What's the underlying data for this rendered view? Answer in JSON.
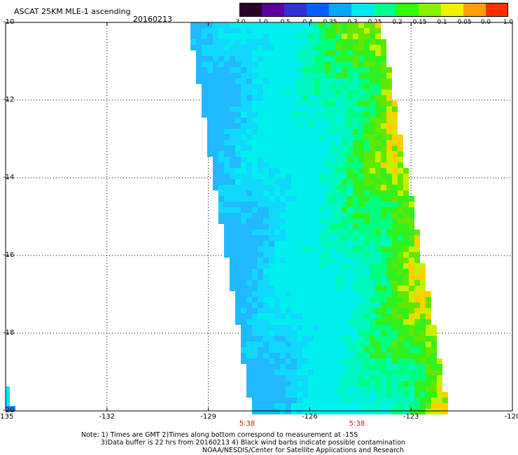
{
  "header": {
    "title": "ASCAT 25KM MLE-1 ascending",
    "date": "20160213"
  },
  "colorbar": {
    "labels": [
      "-3.0",
      "-1.0",
      "-0.5",
      "-0.4",
      "-0.35",
      "-0.3",
      "-0.25",
      "-0.2",
      "-0.15",
      "-0.1",
      "-0.05",
      "0.0",
      "1.0"
    ],
    "colors": [
      "#2a002a",
      "#5a00a0",
      "#3030d8",
      "#0060ff",
      "#00a8ff",
      "#00e8f0",
      "#00ff90",
      "#30ff00",
      "#88f000",
      "#f0f000",
      "#ffa000",
      "#ff3000"
    ]
  },
  "axes": {
    "x_ticks": [
      "-135",
      "-132",
      "-129",
      "-126",
      "-123",
      "-120"
    ],
    "y_ticks": [
      "-10",
      "-12",
      "-14",
      "-16",
      "-18",
      "-20"
    ],
    "lon_range": [
      -135,
      -120
    ],
    "lat_range": [
      -20,
      -10
    ]
  },
  "time_labels": [
    "5:38",
    "5:38"
  ],
  "notes": {
    "line1": "Note: 1) Times are GMT 2)Times along bottom correspond to measurement at -15S",
    "line2": "3)Data buffer is 22 hrs from 20160213 4) Black wind barbs indicate possible contamination",
    "line3": "NOAA/NESDIS/Center for Satellite Applications and Research"
  }
}
